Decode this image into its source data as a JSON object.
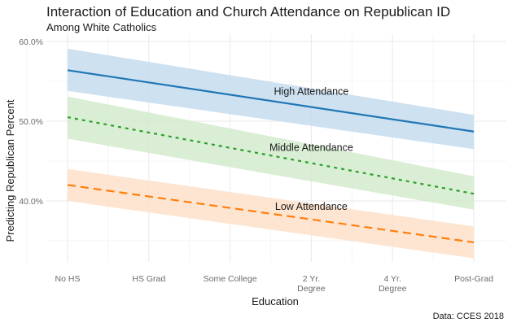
{
  "chart_data": {
    "type": "line",
    "title": "Interaction of Education and Church Attendance on Republican ID",
    "subtitle": "Among White Catholics",
    "xlabel": "Education",
    "ylabel": "Predicting Republican Percent",
    "caption": "Data: CCES 2018",
    "categories": [
      [
        "No HS"
      ],
      [
        "HS Grad"
      ],
      [
        "Some College"
      ],
      [
        "2 Yr.",
        "Degree"
      ],
      [
        "4 Yr.",
        "Degree"
      ],
      [
        "Post-Grad"
      ]
    ],
    "y_ticks": [
      {
        "value": 40,
        "label": "40.0%"
      },
      {
        "value": 50,
        "label": "50.0%"
      },
      {
        "value": 60,
        "label": "60.0%"
      }
    ],
    "y_minor_ticks": [
      35,
      45,
      55
    ],
    "ylim": [
      32,
      61
    ],
    "grid": true,
    "legend": "none (direct labels)",
    "series": [
      {
        "name": "High Attendance",
        "label": "High Attendance",
        "color": "#1f77b4",
        "band_color": "#c6dcee",
        "linestyle": "solid",
        "start": {
          "fit": 56.4,
          "lower": 53.8,
          "upper": 59.1
        },
        "end": {
          "fit": 48.7,
          "lower": 46.5,
          "upper": 50.8
        }
      },
      {
        "name": "Middle Attendance",
        "label": "Middle Attendance",
        "color": "#2ca02c",
        "band_color": "#d2ebcc",
        "linestyle": "dotted",
        "start": {
          "fit": 50.5,
          "lower": 47.8,
          "upper": 53.1
        },
        "end": {
          "fit": 40.9,
          "lower": 38.9,
          "upper": 43.1
        }
      },
      {
        "name": "Low Attendance",
        "label": "Low Attendance",
        "color": "#ff7f0e",
        "band_color": "#fde0c9",
        "linestyle": "dashed",
        "start": {
          "fit": 42.0,
          "lower": 40.0,
          "upper": 44.0
        },
        "end": {
          "fit": 34.8,
          "lower": 32.8,
          "upper": 36.8
        }
      }
    ]
  }
}
